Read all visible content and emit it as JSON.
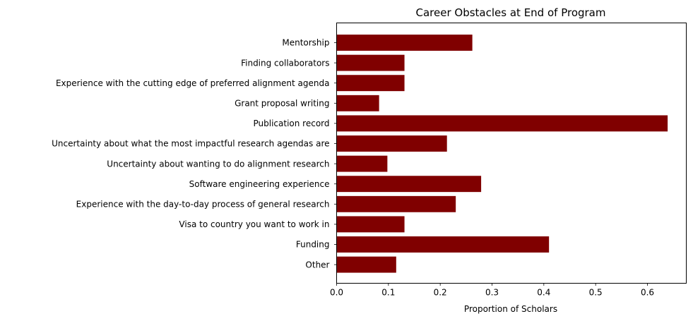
{
  "chart_data": {
    "type": "bar",
    "orientation": "horizontal",
    "title": "Career Obstacles at End of Program",
    "xlabel": "Proportion of Scholars",
    "ylabel": "",
    "xlim": [
      0,
      0.675
    ],
    "xticks": [
      "0.0",
      "0.1",
      "0.2",
      "0.3",
      "0.4",
      "0.5",
      "0.6"
    ],
    "grid": false,
    "bar_color": "#800000",
    "categories": [
      "Mentorship",
      "Finding collaborators",
      "Experience with the cutting edge of preferred alignment agenda",
      "Grant proposal writing",
      "Publication record",
      "Uncertainty about what the most impactful research agendas are",
      "Uncertainty about wanting to do alignment research",
      "Software engineering experience",
      "Experience with the day-to-day process of general research",
      "Visa to country you want to work in",
      "Funding",
      "Other"
    ],
    "values": [
      0.262,
      0.131,
      0.131,
      0.082,
      0.639,
      0.213,
      0.098,
      0.279,
      0.23,
      0.131,
      0.41,
      0.115
    ]
  }
}
